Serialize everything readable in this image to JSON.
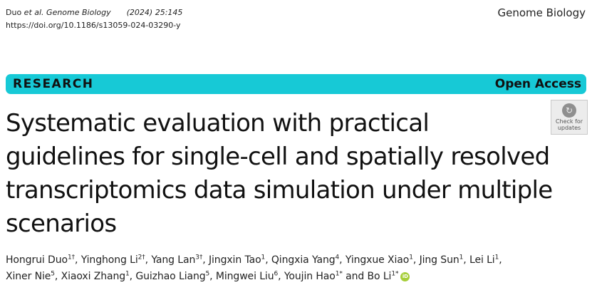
{
  "header": {
    "citation_authors": "Duo ",
    "citation_etal_journal": "et al. Genome Biology",
    "citation_year_vol": "(2024) 25:145",
    "doi": "https://doi.org/10.1186/s13059-024-03290-y",
    "journal_name": "Genome Biology"
  },
  "banner": {
    "section": "RESEARCH",
    "access": "Open Access",
    "color": "#17c9d6"
  },
  "check_updates": {
    "line1": "Check for",
    "line2": "updates",
    "icon": "check-updates-icon"
  },
  "title": {
    "line1": "Systematic evaluation with practical",
    "line2": "guidelines for single-cell and spatially resolved",
    "line3": "transcriptomics data simulation under multiple",
    "line4": "scenarios"
  },
  "authors": [
    {
      "name": "Hongrui Duo",
      "sup": "1†",
      "sep": ", "
    },
    {
      "name": "Yinghong Li",
      "sup": "2†",
      "sep": ", "
    },
    {
      "name": "Yang Lan",
      "sup": "3†",
      "sep": ", "
    },
    {
      "name": "Jingxin Tao",
      "sup": "1",
      "sep": ", "
    },
    {
      "name": "Qingxia Yang",
      "sup": "4",
      "sep": ", "
    },
    {
      "name": "Yingxue Xiao",
      "sup": "1",
      "sep": ", "
    },
    {
      "name": "Jing Sun",
      "sup": "1",
      "sep": ", "
    },
    {
      "name": "Lei Li",
      "sup": "1",
      "sep": ","
    },
    {
      "name": "Xiner Nie",
      "sup": "5",
      "sep": ", "
    },
    {
      "name": "Xiaoxi Zhang",
      "sup": "1",
      "sep": ", "
    },
    {
      "name": "Guizhao Liang",
      "sup": "5",
      "sep": ", "
    },
    {
      "name": "Mingwei Liu",
      "sup": "6",
      "sep": ", "
    },
    {
      "name": "Youjin Hao",
      "sup": "1*",
      "sep": " and "
    },
    {
      "name": "Bo Li",
      "sup": "1*",
      "sep": ""
    }
  ],
  "orcid_icon": "orcid-icon"
}
